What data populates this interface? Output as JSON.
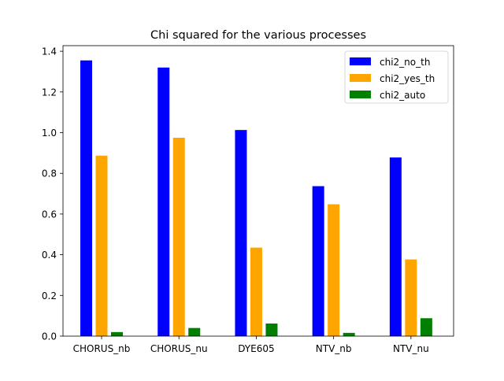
{
  "chart_data": {
    "type": "bar",
    "title": "Chi squared for the various processes",
    "xlabel": "",
    "ylabel": "",
    "categories": [
      "CHORUS_nb",
      "CHORUS_nu",
      "DYE605",
      "NTV_nb",
      "NTV_nu"
    ],
    "series": [
      {
        "name": "chi2_no_th",
        "color": "#0000ff",
        "values": [
          1.355,
          1.32,
          1.013,
          0.737,
          0.878
        ]
      },
      {
        "name": "chi2_yes_th",
        "color": "#ffa500",
        "values": [
          0.887,
          0.975,
          0.435,
          0.648,
          0.377
        ]
      },
      {
        "name": "chi2_auto",
        "color": "#008000",
        "values": [
          0.02,
          0.04,
          0.062,
          0.016,
          0.088
        ]
      }
    ],
    "ylim": [
      0,
      1.4275
    ],
    "yticks": [
      "0.0",
      "0.2",
      "0.4",
      "0.6",
      "0.8",
      "1.0",
      "1.2",
      "1.4"
    ],
    "legend_position": "top-right",
    "grid": false
  }
}
